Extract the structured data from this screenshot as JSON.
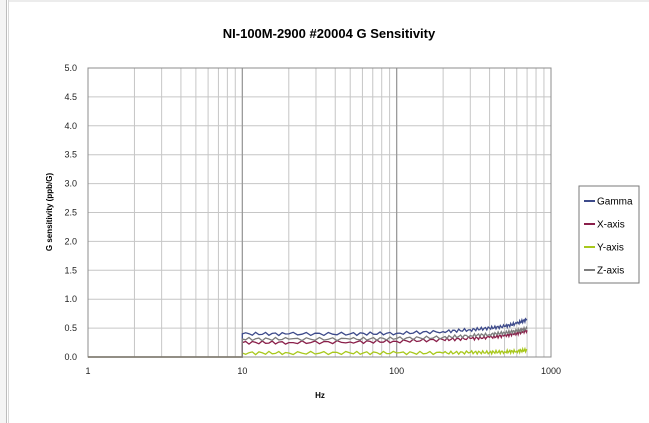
{
  "colors": {
    "gamma": "#3d4a8a",
    "x_axis": "#8a1f4a",
    "y_axis": "#a8c81c",
    "z_axis": "#7d7d7d",
    "grid": "#c6c6c6",
    "decade_line": "#9a9a9a"
  },
  "chart_data": {
    "type": "line",
    "title": "NI-100M-2900 #20004 G Sensitivity",
    "xlabel": "Hz",
    "ylabel": "G sensitivity (ppb/G)",
    "xscale": "log",
    "xlim": [
      1,
      1000
    ],
    "ylim": [
      0,
      5.0
    ],
    "x_tick_labels": [
      "1",
      "10",
      "100",
      "1000"
    ],
    "y_tick_labels": [
      "0.0",
      "0.5",
      "1.0",
      "1.5",
      "2.0",
      "2.5",
      "3.0",
      "3.5",
      "4.0",
      "4.5",
      "5.0"
    ],
    "grid": true,
    "legend_position": "right",
    "series": [
      {
        "name": "Gamma",
        "color_key": "gamma",
        "x": [
          1,
          10,
          10,
          20,
          50,
          100,
          200,
          300,
          400,
          500,
          600,
          700
        ],
        "y": [
          0.0,
          0.0,
          0.4,
          0.4,
          0.4,
          0.41,
          0.44,
          0.47,
          0.5,
          0.53,
          0.58,
          0.65
        ]
      },
      {
        "name": "X-axis",
        "color_key": "x_axis",
        "x": [
          1,
          10,
          10,
          20,
          50,
          100,
          200,
          300,
          400,
          500,
          600,
          700
        ],
        "y": [
          0.0,
          0.0,
          0.25,
          0.25,
          0.26,
          0.27,
          0.3,
          0.32,
          0.34,
          0.37,
          0.41,
          0.46
        ]
      },
      {
        "name": "Y-axis",
        "color_key": "y_axis",
        "x": [
          1,
          10,
          10,
          20,
          50,
          100,
          200,
          300,
          400,
          500,
          600,
          700
        ],
        "y": [
          0.0,
          0.0,
          0.07,
          0.07,
          0.07,
          0.07,
          0.07,
          0.08,
          0.08,
          0.09,
          0.1,
          0.12
        ]
      },
      {
        "name": "Z-axis",
        "color_key": "z_axis",
        "x": [
          1,
          10,
          10,
          20,
          50,
          100,
          200,
          300,
          400,
          500,
          600,
          700
        ],
        "y": [
          0.0,
          0.0,
          0.31,
          0.31,
          0.31,
          0.32,
          0.34,
          0.37,
          0.39,
          0.42,
          0.45,
          0.49
        ]
      }
    ]
  }
}
